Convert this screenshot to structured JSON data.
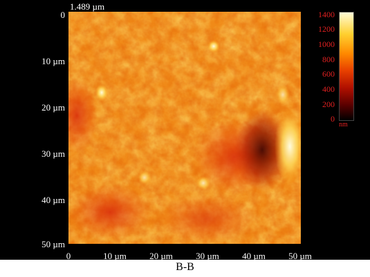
{
  "figure": {
    "height_label": "1.489 µm",
    "y_ticks": [
      "0",
      "10 µm",
      "20 µm",
      "30 µm",
      "40 µm",
      "50 µm"
    ],
    "x_ticks": [
      "0",
      "10 µm",
      "20 µm",
      "30 µm",
      "40 µm",
      "50 µm"
    ],
    "colorbar": {
      "ticks": [
        "1400",
        "1200",
        "1000",
        "800",
        "600",
        "400",
        "200",
        "0"
      ],
      "unit": "nm",
      "tick_color": "#e02020"
    },
    "caption": "B-B"
  }
}
